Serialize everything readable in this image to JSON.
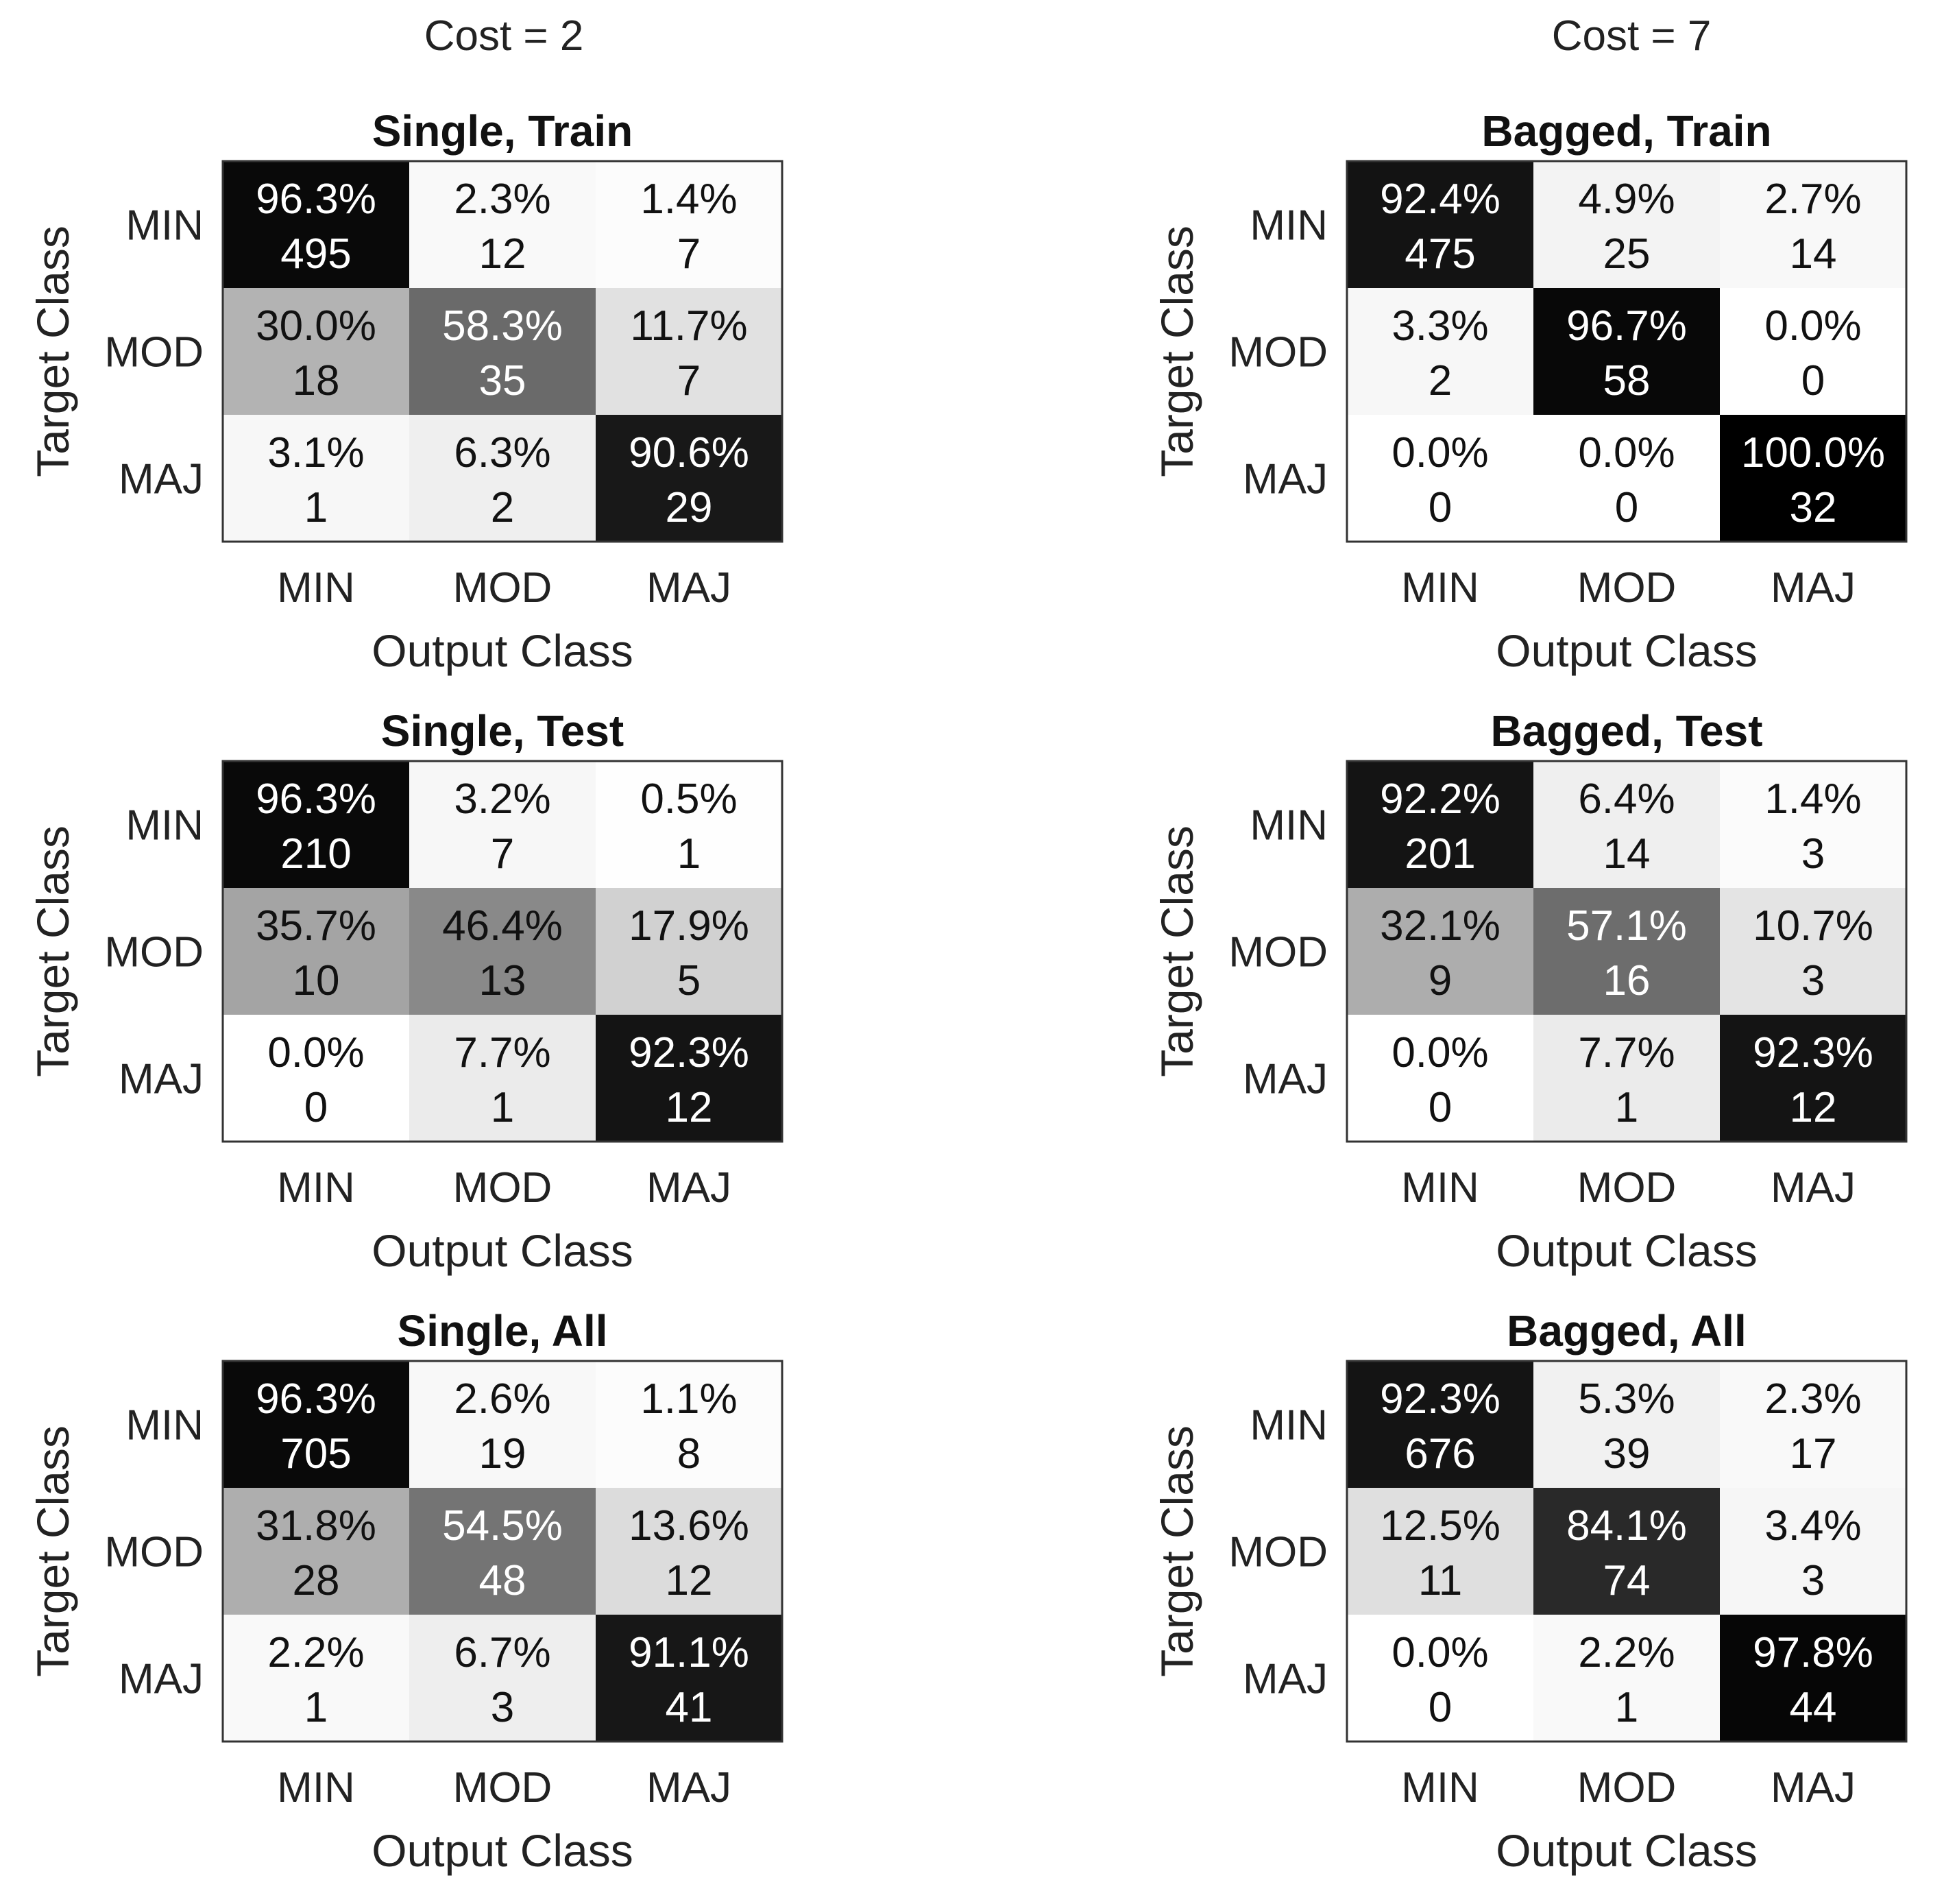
{
  "chart_data": {
    "type": "heatmap",
    "columns": [
      {
        "title": "Cost = 2"
      },
      {
        "title": "Cost = 7"
      }
    ],
    "panels": [
      {
        "title": "Single, Train",
        "column": 0,
        "row": 0,
        "ylabel": "Target Class",
        "xlabel": "Output Class",
        "row_labels": [
          "MIN",
          "MOD",
          "MAJ"
        ],
        "col_labels": [
          "MIN",
          "MOD",
          "MAJ"
        ],
        "percents": [
          [
            "96.3%",
            "2.3%",
            "1.4%"
          ],
          [
            "30.0%",
            "58.3%",
            "11.7%"
          ],
          [
            "3.1%",
            "6.3%",
            "90.6%"
          ]
        ],
        "counts": [
          [
            495,
            12,
            7
          ],
          [
            18,
            35,
            7
          ],
          [
            1,
            2,
            29
          ]
        ]
      },
      {
        "title": "Single, Test",
        "column": 0,
        "row": 1,
        "ylabel": "Target Class",
        "xlabel": "Output Class",
        "row_labels": [
          "MIN",
          "MOD",
          "MAJ"
        ],
        "col_labels": [
          "MIN",
          "MOD",
          "MAJ"
        ],
        "percents": [
          [
            "96.3%",
            "3.2%",
            "0.5%"
          ],
          [
            "35.7%",
            "46.4%",
            "17.9%"
          ],
          [
            "0.0%",
            "7.7%",
            "92.3%"
          ]
        ],
        "counts": [
          [
            210,
            7,
            1
          ],
          [
            10,
            13,
            5
          ],
          [
            0,
            1,
            12
          ]
        ]
      },
      {
        "title": "Single, All",
        "column": 0,
        "row": 2,
        "ylabel": "Target Class",
        "xlabel": "Output Class",
        "row_labels": [
          "MIN",
          "MOD",
          "MAJ"
        ],
        "col_labels": [
          "MIN",
          "MOD",
          "MAJ"
        ],
        "percents": [
          [
            "96.3%",
            "2.6%",
            "1.1%"
          ],
          [
            "31.8%",
            "54.5%",
            "13.6%"
          ],
          [
            "2.2%",
            "6.7%",
            "91.1%"
          ]
        ],
        "counts": [
          [
            705,
            19,
            8
          ],
          [
            28,
            48,
            12
          ],
          [
            1,
            3,
            41
          ]
        ]
      },
      {
        "title": "Bagged, Train",
        "column": 1,
        "row": 0,
        "ylabel": "Target Class",
        "xlabel": "Output Class",
        "row_labels": [
          "MIN",
          "MOD",
          "MAJ"
        ],
        "col_labels": [
          "MIN",
          "MOD",
          "MAJ"
        ],
        "percents": [
          [
            "92.4%",
            "4.9%",
            "2.7%"
          ],
          [
            "3.3%",
            "96.7%",
            "0.0%"
          ],
          [
            "0.0%",
            "0.0%",
            "100.0%"
          ]
        ],
        "counts": [
          [
            475,
            25,
            14
          ],
          [
            2,
            58,
            0
          ],
          [
            0,
            0,
            32
          ]
        ]
      },
      {
        "title": "Bagged, Test",
        "column": 1,
        "row": 1,
        "ylabel": "Target Class",
        "xlabel": "Output Class",
        "row_labels": [
          "MIN",
          "MOD",
          "MAJ"
        ],
        "col_labels": [
          "MIN",
          "MOD",
          "MAJ"
        ],
        "percents": [
          [
            "92.2%",
            "6.4%",
            "1.4%"
          ],
          [
            "32.1%",
            "57.1%",
            "10.7%"
          ],
          [
            "0.0%",
            "7.7%",
            "92.3%"
          ]
        ],
        "counts": [
          [
            201,
            14,
            3
          ],
          [
            9,
            16,
            3
          ],
          [
            0,
            1,
            12
          ]
        ]
      },
      {
        "title": "Bagged, All",
        "column": 1,
        "row": 2,
        "ylabel": "Target Class",
        "xlabel": "Output Class",
        "row_labels": [
          "MIN",
          "MOD",
          "MAJ"
        ],
        "col_labels": [
          "MIN",
          "MOD",
          "MAJ"
        ],
        "percents": [
          [
            "92.3%",
            "5.3%",
            "2.3%"
          ],
          [
            "12.5%",
            "84.1%",
            "3.4%"
          ],
          [
            "0.0%",
            "2.2%",
            "97.8%"
          ]
        ],
        "counts": [
          [
            676,
            39,
            17
          ],
          [
            11,
            74,
            3
          ],
          [
            0,
            1,
            44
          ]
        ]
      }
    ],
    "colormap": "grayscale (white = 0%, black = 100% of row)",
    "legend": "none",
    "grid": false
  }
}
